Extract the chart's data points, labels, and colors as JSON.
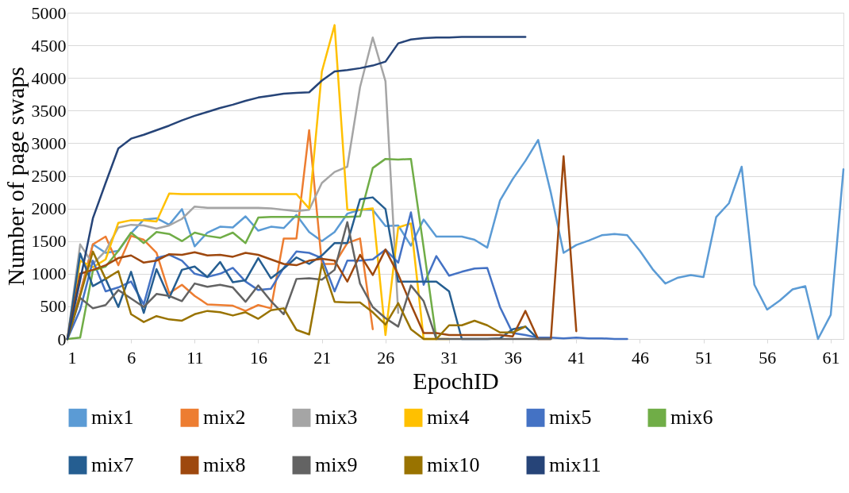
{
  "chart_data": {
    "type": "line",
    "xlabel": "EpochID",
    "ylabel": "Number of page swaps",
    "x": [
      1,
      2,
      3,
      4,
      5,
      6,
      7,
      8,
      9,
      10,
      11,
      12,
      13,
      14,
      15,
      16,
      17,
      18,
      19,
      20,
      21,
      22,
      23,
      24,
      25,
      26,
      27,
      28,
      29,
      30,
      31,
      32,
      33,
      34,
      35,
      36,
      37,
      38,
      39,
      40,
      41,
      42,
      43,
      44,
      45,
      46,
      47,
      48,
      49,
      50,
      51,
      52,
      53,
      54,
      55,
      56,
      57,
      58,
      59,
      60,
      61,
      62
    ],
    "xlim": [
      1,
      62
    ],
    "xticks": [
      1,
      6,
      11,
      16,
      21,
      26,
      31,
      36,
      41,
      46,
      51,
      56,
      61
    ],
    "ylim": [
      0,
      5000
    ],
    "yticks": [
      0,
      500,
      1000,
      1500,
      2000,
      2500,
      3000,
      3500,
      4000,
      4500,
      5000
    ],
    "grid": "y",
    "legend": "bottom",
    "series": [
      {
        "name": "mix1",
        "color": "#5b9bd5",
        "values": [
          0,
          700,
          1450,
          1320,
          1350,
          1620,
          1830,
          1850,
          1750,
          1990,
          1420,
          1630,
          1720,
          1710,
          1880,
          1660,
          1720,
          1700,
          1900,
          1640,
          1500,
          1640,
          1920,
          1980,
          1980,
          1730,
          1740,
          1430,
          1830,
          1570,
          1570,
          1570,
          1520,
          1400,
          2120,
          2450,
          2730,
          3050,
          2240,
          1320,
          1440,
          1510,
          1590,
          1610,
          1590,
          1350,
          1070,
          850,
          940,
          980,
          950,
          1870,
          2080,
          2640,
          830,
          450,
          590,
          760,
          810,
          0,
          370,
          2600
        ]
      },
      {
        "name": "mix2",
        "color": "#ed7d31",
        "values": [
          0,
          700,
          1450,
          1570,
          1130,
          1580,
          1520,
          1320,
          700,
          830,
          660,
          530,
          520,
          510,
          430,
          520,
          470,
          1540,
          1540,
          3200,
          1150,
          1150,
          1470,
          1540,
          150,
          null,
          null,
          null,
          null,
          null,
          null,
          null,
          null,
          null,
          null,
          null,
          null,
          null,
          null,
          null,
          null,
          null,
          null,
          null,
          null,
          null,
          null,
          null,
          null,
          null,
          null,
          null,
          null,
          null,
          null,
          null,
          null,
          null,
          null,
          null,
          null,
          null
        ]
      },
      {
        "name": "mix3",
        "color": "#a5a5a5",
        "values": [
          0,
          1450,
          1150,
          1350,
          1710,
          1750,
          1740,
          1690,
          1740,
          1840,
          2030,
          2010,
          2010,
          2010,
          2010,
          2010,
          2000,
          1980,
          1960,
          1980,
          2390,
          2560,
          2640,
          3860,
          4620,
          3950,
          400,
          null,
          null,
          null,
          null,
          null,
          null,
          null,
          null,
          null,
          null,
          null,
          null,
          null,
          null,
          null,
          null,
          null,
          null,
          null,
          null,
          null,
          null,
          null,
          null,
          null,
          null,
          null,
          null,
          null,
          null,
          null,
          null,
          null,
          null,
          null
        ]
      },
      {
        "name": "mix4",
        "color": "#ffc000",
        "values": [
          0,
          1200,
          1100,
          1220,
          1780,
          1820,
          1820,
          1800,
          2230,
          2220,
          2220,
          2220,
          2220,
          2220,
          2220,
          2220,
          2220,
          2220,
          2220,
          2000,
          4100,
          4810,
          1980,
          1980,
          2000,
          60,
          1710,
          1770,
          0,
          0,
          0,
          null,
          null,
          null,
          null,
          null,
          null,
          null,
          null,
          null,
          null,
          null,
          null,
          null,
          null,
          null,
          null,
          null,
          null,
          null,
          null,
          null,
          null,
          null,
          null,
          null,
          null,
          null,
          null,
          null,
          null,
          null
        ]
      },
      {
        "name": "mix5",
        "color": "#4472c4",
        "values": [
          0,
          450,
          1200,
          730,
          790,
          880,
          530,
          1240,
          1290,
          1200,
          1000,
          950,
          1000,
          1090,
          880,
          750,
          770,
          1090,
          1340,
          1320,
          1240,
          730,
          1200,
          1200,
          1220,
          1370,
          1170,
          1940,
          830,
          1270,
          970,
          1030,
          1080,
          1090,
          490,
          90,
          60,
          20,
          20,
          10,
          20,
          10,
          10,
          0,
          0,
          null,
          null,
          null,
          null,
          null,
          null,
          null,
          null,
          null,
          null,
          null,
          null,
          null,
          null,
          null,
          null,
          null
        ]
      },
      {
        "name": "mix6",
        "color": "#70ad47",
        "values": [
          0,
          20,
          1050,
          1110,
          1350,
          1630,
          1470,
          1640,
          1610,
          1500,
          1630,
          1580,
          1550,
          1630,
          1470,
          1860,
          1870,
          1870,
          1870,
          1870,
          1870,
          1870,
          1870,
          1880,
          2620,
          2760,
          2750,
          2760,
          1400,
          0,
          null,
          null,
          null,
          null,
          null,
          null,
          null,
          null,
          null,
          null,
          null,
          null,
          null,
          null,
          null,
          null,
          null,
          null,
          null,
          null,
          null,
          null,
          null,
          null,
          null,
          null,
          null,
          null,
          null,
          null,
          null,
          null
        ]
      },
      {
        "name": "mix7",
        "color": "#255e91",
        "values": [
          0,
          1310,
          810,
          920,
          490,
          1030,
          400,
          1070,
          630,
          1060,
          1110,
          950,
          1180,
          870,
          900,
          1240,
          930,
          1080,
          1250,
          1150,
          1280,
          1470,
          1470,
          2140,
          2170,
          1990,
          880,
          880,
          880,
          880,
          730,
          0,
          0,
          0,
          10,
          150,
          190,
          0,
          null,
          null,
          null,
          null,
          null,
          null,
          null,
          null,
          null,
          null,
          null,
          null,
          null,
          null,
          null,
          null,
          null,
          null,
          null,
          null,
          null,
          null,
          null,
          null
        ]
      },
      {
        "name": "mix8",
        "color": "#9e480e",
        "values": [
          0,
          1000,
          1060,
          1130,
          1240,
          1280,
          1170,
          1200,
          1300,
          1290,
          1330,
          1280,
          1290,
          1260,
          1320,
          1290,
          1220,
          1150,
          1130,
          1200,
          1230,
          1200,
          880,
          1290,
          980,
          1370,
          990,
          530,
          90,
          90,
          60,
          60,
          60,
          60,
          60,
          40,
          430,
          0,
          0,
          2800,
          120,
          null,
          null,
          null,
          null,
          null,
          null,
          null,
          null,
          null,
          null,
          null,
          null,
          null,
          null,
          null,
          null,
          null,
          null,
          null,
          null,
          null
        ]
      },
      {
        "name": "mix9",
        "color": "#636363",
        "values": [
          0,
          630,
          470,
          520,
          750,
          620,
          490,
          690,
          660,
          580,
          850,
          800,
          830,
          790,
          570,
          820,
          580,
          380,
          920,
          930,
          910,
          1060,
          1790,
          850,
          490,
          320,
          190,
          820,
          580,
          0,
          0,
          0,
          0,
          0,
          0,
          0,
          0,
          0,
          0,
          null,
          null,
          null,
          null,
          null,
          null,
          null,
          null,
          null,
          null,
          null,
          null,
          null,
          null,
          null,
          null,
          null,
          null,
          null,
          null,
          null,
          null,
          null
        ]
      },
      {
        "name": "mix10",
        "color": "#997300",
        "values": [
          0,
          660,
          1340,
          920,
          1040,
          380,
          260,
          350,
          300,
          280,
          380,
          430,
          410,
          360,
          410,
          310,
          440,
          470,
          140,
          70,
          1150,
          570,
          560,
          560,
          410,
          220,
          550,
          150,
          0,
          0,
          210,
          210,
          280,
          210,
          100,
          100,
          190,
          null,
          null,
          null,
          null,
          null,
          null,
          null,
          null,
          null,
          null,
          null,
          null,
          null,
          null,
          null,
          null,
          null,
          null,
          null,
          null,
          null,
          null,
          null,
          null,
          null
        ]
      },
      {
        "name": "mix11",
        "color": "#264478",
        "values": [
          0,
          900,
          1850,
          2390,
          2920,
          3070,
          3130,
          3200,
          3270,
          3350,
          3420,
          3480,
          3540,
          3590,
          3650,
          3700,
          3730,
          3760,
          3770,
          3780,
          3960,
          4100,
          4120,
          4150,
          4190,
          4250,
          4530,
          4590,
          4610,
          4620,
          4620,
          4630,
          4630,
          4630,
          4630,
          4630,
          4630,
          null,
          null,
          null,
          null,
          null,
          null,
          null,
          null,
          null,
          null,
          null,
          null,
          null,
          null,
          null,
          null,
          null,
          null,
          null,
          null,
          null,
          null,
          null,
          null,
          null
        ]
      }
    ]
  }
}
